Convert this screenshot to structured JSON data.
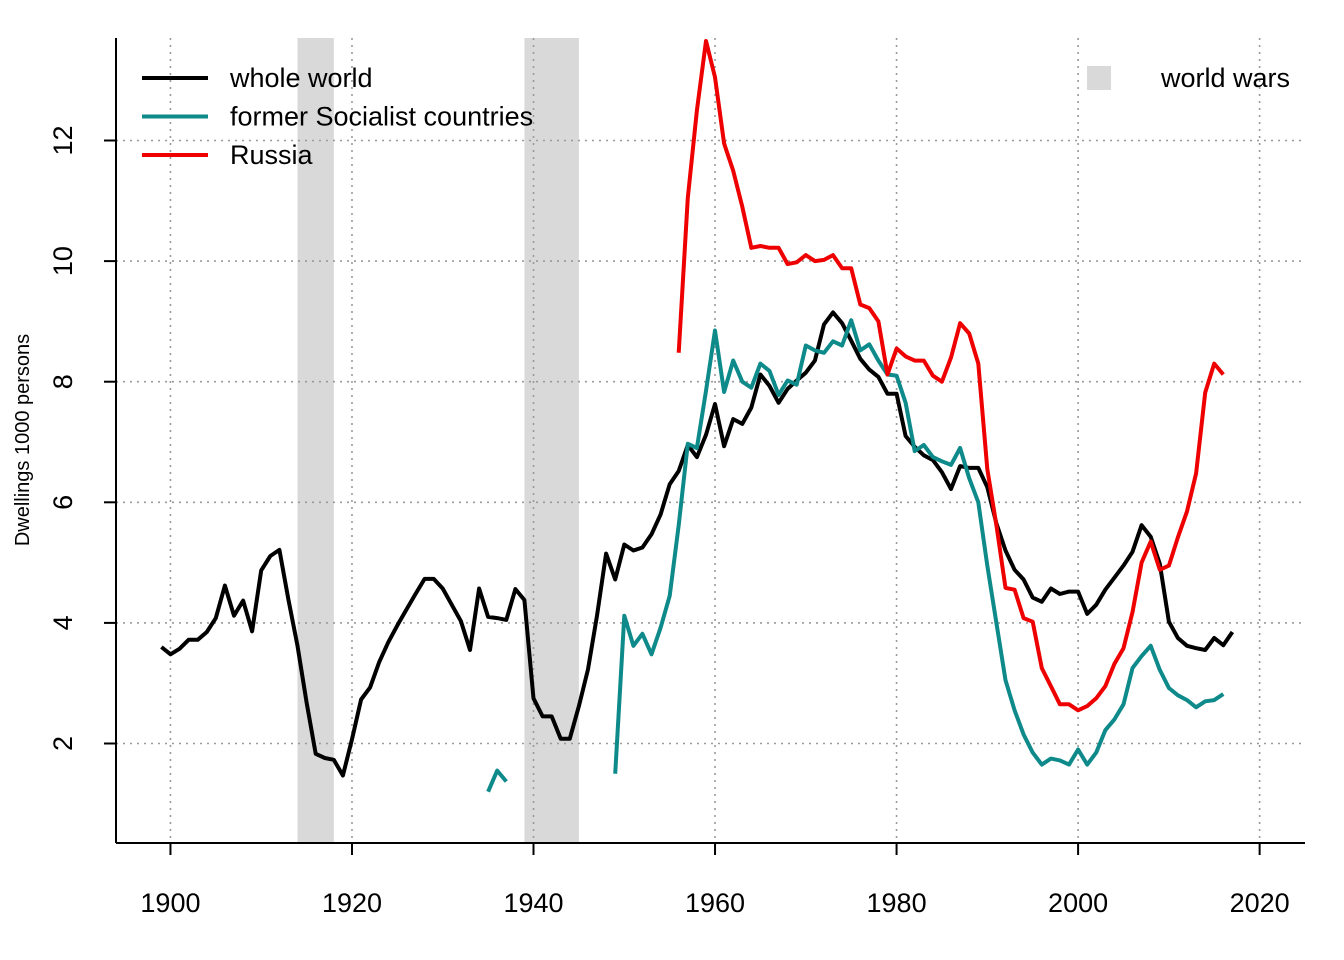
{
  "chart_data": {
    "type": "line",
    "title": "",
    "xlabel": "",
    "ylabel": "Dwellings  1000 persons",
    "xlim": [
      1894,
      2025
    ],
    "ylim": [
      0.35,
      13.7
    ],
    "x_ticks": [
      1900,
      1920,
      1940,
      1960,
      1980,
      2000,
      2020
    ],
    "y_ticks": [
      2,
      4,
      6,
      8,
      10,
      12
    ],
    "grid": true,
    "legend_placement": "top-left",
    "shaded_bands": [
      {
        "name": "world wars",
        "from": 1914,
        "to": 1918,
        "color": "#d9d9d9"
      },
      {
        "name": "world wars",
        "from": 1939,
        "to": 1945,
        "color": "#d9d9d9"
      }
    ],
    "band_legend": {
      "label": "world wars",
      "placement": "top-right",
      "color": "#d9d9d9"
    },
    "series": [
      {
        "name": "whole world",
        "color": "#000000",
        "segments": [
          [
            [
              1899,
              3.6
            ],
            [
              1900,
              3.48
            ],
            [
              1901,
              3.57
            ],
            [
              1902,
              3.72
            ],
            [
              1903,
              3.72
            ],
            [
              1904,
              3.85
            ],
            [
              1905,
              4.08
            ],
            [
              1906,
              4.62
            ],
            [
              1907,
              4.12
            ],
            [
              1908,
              4.37
            ],
            [
              1909,
              3.86
            ],
            [
              1910,
              4.87
            ],
            [
              1911,
              5.11
            ],
            [
              1912,
              5.21
            ],
            [
              1913,
              4.38
            ],
            [
              1914,
              3.62
            ],
            [
              1915,
              2.68
            ],
            [
              1916,
              1.83
            ],
            [
              1917,
              1.76
            ],
            [
              1918,
              1.73
            ],
            [
              1919,
              1.47
            ],
            [
              1920,
              2.07
            ],
            [
              1921,
              2.73
            ],
            [
              1922,
              2.93
            ],
            [
              1923,
              3.35
            ],
            [
              1924,
              3.68
            ],
            [
              1925,
              3.96
            ],
            [
              1926,
              4.22
            ],
            [
              1927,
              4.48
            ],
            [
              1928,
              4.73
            ],
            [
              1929,
              4.73
            ],
            [
              1930,
              4.57
            ],
            [
              1931,
              4.3
            ],
            [
              1932,
              4.03
            ],
            [
              1933,
              3.55
            ],
            [
              1934,
              4.57
            ],
            [
              1935,
              4.1
            ],
            [
              1936,
              4.08
            ],
            [
              1937,
              4.05
            ],
            [
              1938,
              4.56
            ],
            [
              1939,
              4.38
            ],
            [
              1940,
              2.75
            ],
            [
              1941,
              2.45
            ],
            [
              1942,
              2.45
            ],
            [
              1943,
              2.08
            ],
            [
              1944,
              2.08
            ],
            [
              1945,
              2.62
            ],
            [
              1946,
              3.23
            ],
            [
              1947,
              4.12
            ],
            [
              1948,
              5.15
            ],
            [
              1949,
              4.72
            ],
            [
              1950,
              5.3
            ],
            [
              1951,
              5.2
            ],
            [
              1952,
              5.25
            ],
            [
              1953,
              5.47
            ],
            [
              1954,
              5.8
            ],
            [
              1955,
              6.3
            ],
            [
              1956,
              6.52
            ],
            [
              1957,
              6.95
            ],
            [
              1958,
              6.75
            ],
            [
              1959,
              7.12
            ],
            [
              1960,
              7.63
            ],
            [
              1961,
              6.93
            ],
            [
              1962,
              7.38
            ],
            [
              1963,
              7.3
            ],
            [
              1964,
              7.57
            ],
            [
              1965,
              8.12
            ],
            [
              1966,
              7.93
            ],
            [
              1967,
              7.65
            ],
            [
              1968,
              7.88
            ],
            [
              1969,
              8.02
            ],
            [
              1970,
              8.15
            ],
            [
              1971,
              8.35
            ],
            [
              1972,
              8.95
            ],
            [
              1973,
              9.15
            ],
            [
              1974,
              8.97
            ],
            [
              1975,
              8.68
            ],
            [
              1976,
              8.38
            ],
            [
              1977,
              8.2
            ],
            [
              1978,
              8.08
            ],
            [
              1979,
              7.8
            ],
            [
              1980,
              7.8
            ],
            [
              1981,
              7.1
            ],
            [
              1982,
              6.92
            ],
            [
              1983,
              6.78
            ],
            [
              1984,
              6.7
            ],
            [
              1985,
              6.5
            ],
            [
              1986,
              6.22
            ],
            [
              1987,
              6.6
            ],
            [
              1988,
              6.57
            ],
            [
              1989,
              6.57
            ],
            [
              1990,
              6.25
            ],
            [
              1991,
              5.65
            ],
            [
              1992,
              5.2
            ],
            [
              1993,
              4.88
            ],
            [
              1994,
              4.72
            ],
            [
              1995,
              4.42
            ],
            [
              1996,
              4.35
            ],
            [
              1997,
              4.57
            ],
            [
              1998,
              4.48
            ],
            [
              1999,
              4.52
            ],
            [
              2000,
              4.52
            ],
            [
              2001,
              4.15
            ],
            [
              2002,
              4.3
            ],
            [
              2003,
              4.55
            ],
            [
              2004,
              4.75
            ],
            [
              2005,
              4.95
            ],
            [
              2006,
              5.18
            ],
            [
              2007,
              5.62
            ],
            [
              2008,
              5.43
            ],
            [
              2009,
              4.98
            ],
            [
              2010,
              4.02
            ],
            [
              2011,
              3.75
            ],
            [
              2012,
              3.62
            ],
            [
              2013,
              3.58
            ],
            [
              2014,
              3.55
            ],
            [
              2015,
              3.75
            ],
            [
              2016,
              3.63
            ],
            [
              2017,
              3.85
            ]
          ]
        ]
      },
      {
        "name": "former Socialist countries",
        "color": "#0e8a8a",
        "segments": [
          [
            [
              1935,
              1.2
            ],
            [
              1936,
              1.55
            ],
            [
              1937,
              1.37
            ]
          ],
          [
            [
              1949,
              1.5
            ],
            [
              1950,
              4.12
            ],
            [
              1951,
              3.62
            ],
            [
              1952,
              3.82
            ],
            [
              1953,
              3.48
            ],
            [
              1954,
              3.92
            ],
            [
              1955,
              4.45
            ],
            [
              1956,
              5.62
            ],
            [
              1957,
              6.97
            ],
            [
              1958,
              6.9
            ],
            [
              1959,
              7.85
            ],
            [
              1960,
              8.85
            ],
            [
              1961,
              7.83
            ],
            [
              1962,
              8.35
            ],
            [
              1963,
              8.0
            ],
            [
              1964,
              7.9
            ],
            [
              1965,
              8.3
            ],
            [
              1966,
              8.18
            ],
            [
              1967,
              7.78
            ],
            [
              1968,
              8.02
            ],
            [
              1969,
              7.95
            ],
            [
              1970,
              8.6
            ],
            [
              1971,
              8.52
            ],
            [
              1972,
              8.48
            ],
            [
              1973,
              8.67
            ],
            [
              1974,
              8.6
            ],
            [
              1975,
              9.02
            ],
            [
              1976,
              8.52
            ],
            [
              1977,
              8.62
            ],
            [
              1978,
              8.35
            ],
            [
              1979,
              8.12
            ],
            [
              1980,
              8.1
            ],
            [
              1981,
              7.65
            ],
            [
              1982,
              6.85
            ],
            [
              1983,
              6.95
            ],
            [
              1984,
              6.75
            ],
            [
              1985,
              6.68
            ],
            [
              1986,
              6.62
            ],
            [
              1987,
              6.9
            ],
            [
              1988,
              6.4
            ],
            [
              1989,
              6.0
            ],
            [
              1990,
              4.95
            ],
            [
              1991,
              4.0
            ],
            [
              1992,
              3.05
            ],
            [
              1993,
              2.55
            ],
            [
              1994,
              2.15
            ],
            [
              1995,
              1.85
            ],
            [
              1996,
              1.65
            ],
            [
              1997,
              1.75
            ],
            [
              1998,
              1.72
            ],
            [
              1999,
              1.65
            ],
            [
              2000,
              1.9
            ],
            [
              2001,
              1.65
            ],
            [
              2002,
              1.85
            ],
            [
              2003,
              2.22
            ],
            [
              2004,
              2.4
            ],
            [
              2005,
              2.65
            ],
            [
              2006,
              3.25
            ],
            [
              2007,
              3.45
            ],
            [
              2008,
              3.62
            ],
            [
              2009,
              3.22
            ],
            [
              2010,
              2.92
            ],
            [
              2011,
              2.8
            ],
            [
              2012,
              2.72
            ],
            [
              2013,
              2.6
            ],
            [
              2014,
              2.7
            ],
            [
              2015,
              2.72
            ],
            [
              2016,
              2.82
            ]
          ]
        ]
      },
      {
        "name": "Russia",
        "color": "#ee0000",
        "segments": [
          [
            [
              1956,
              8.48
            ],
            [
              1957,
              11.05
            ],
            [
              1958,
              12.5
            ],
            [
              1959,
              13.65
            ],
            [
              1960,
              13.05
            ],
            [
              1961,
              11.95
            ],
            [
              1962,
              11.5
            ],
            [
              1963,
              10.9
            ],
            [
              1964,
              10.22
            ],
            [
              1965,
              10.25
            ],
            [
              1966,
              10.22
            ],
            [
              1967,
              10.22
            ],
            [
              1968,
              9.95
            ],
            [
              1969,
              9.98
            ],
            [
              1970,
              10.1
            ],
            [
              1971,
              10.0
            ],
            [
              1972,
              10.02
            ],
            [
              1973,
              10.1
            ],
            [
              1974,
              9.88
            ],
            [
              1975,
              9.88
            ],
            [
              1976,
              9.28
            ],
            [
              1977,
              9.22
            ],
            [
              1978,
              9.0
            ],
            [
              1979,
              8.12
            ],
            [
              1980,
              8.55
            ],
            [
              1981,
              8.42
            ],
            [
              1982,
              8.35
            ],
            [
              1983,
              8.35
            ],
            [
              1984,
              8.1
            ],
            [
              1985,
              8.0
            ],
            [
              1986,
              8.4
            ],
            [
              1987,
              8.97
            ],
            [
              1988,
              8.8
            ],
            [
              1989,
              8.3
            ],
            [
              1990,
              6.55
            ],
            [
              1991,
              5.62
            ],
            [
              1992,
              4.58
            ],
            [
              1993,
              4.55
            ],
            [
              1994,
              4.08
            ],
            [
              1995,
              4.02
            ],
            [
              1996,
              3.25
            ],
            [
              1997,
              2.95
            ],
            [
              1998,
              2.65
            ],
            [
              1999,
              2.65
            ],
            [
              2000,
              2.55
            ],
            [
              2001,
              2.62
            ],
            [
              2002,
              2.75
            ],
            [
              2003,
              2.95
            ],
            [
              2004,
              3.32
            ],
            [
              2005,
              3.58
            ],
            [
              2006,
              4.18
            ],
            [
              2007,
              5.0
            ],
            [
              2008,
              5.35
            ],
            [
              2009,
              4.88
            ],
            [
              2010,
              4.95
            ],
            [
              2011,
              5.42
            ],
            [
              2012,
              5.85
            ],
            [
              2013,
              6.48
            ],
            [
              2014,
              7.82
            ],
            [
              2015,
              8.3
            ],
            [
              2016,
              8.12
            ]
          ]
        ]
      }
    ]
  }
}
